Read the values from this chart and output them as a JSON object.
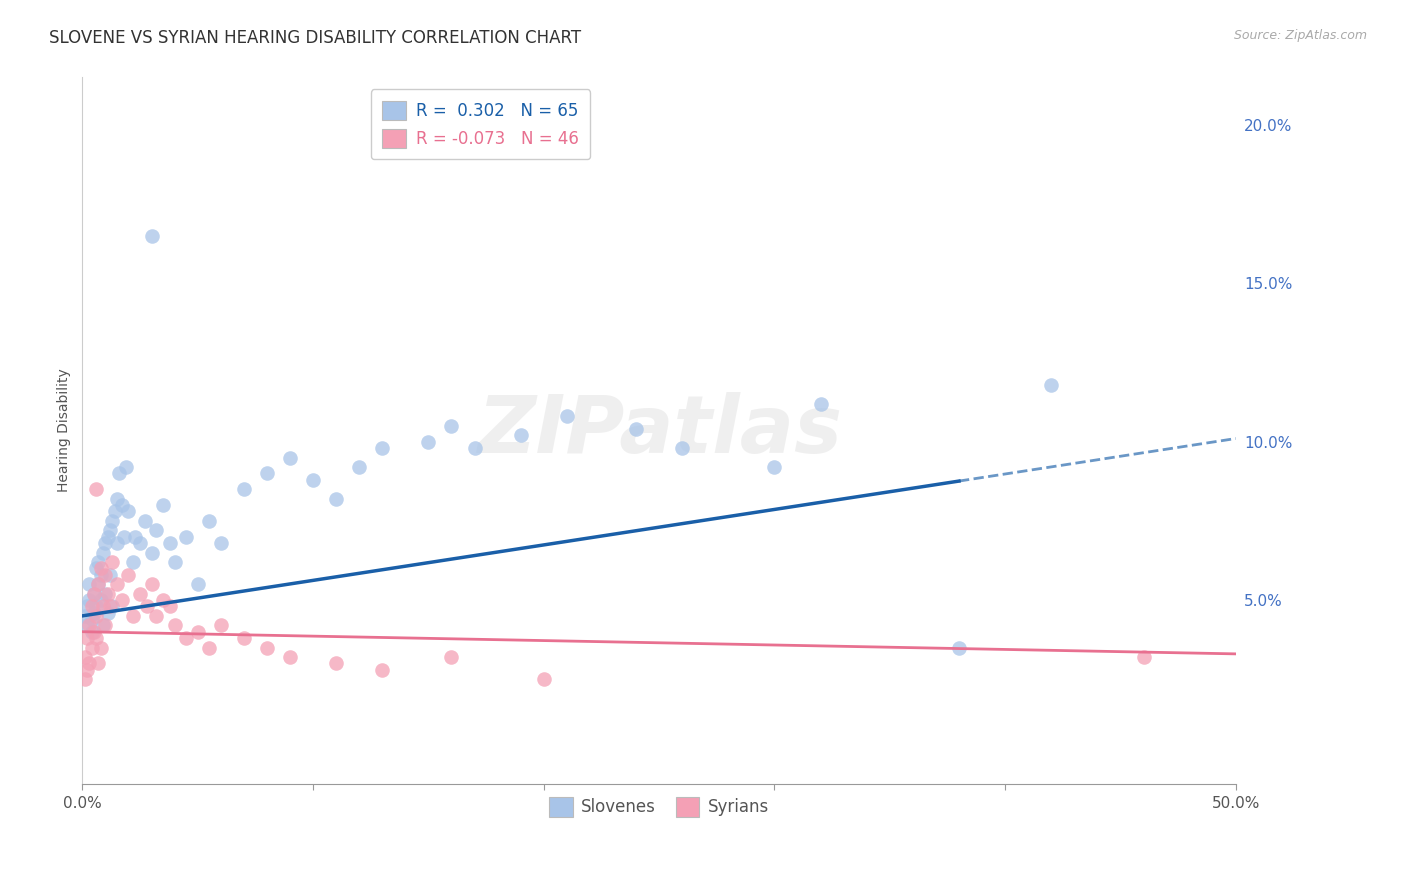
{
  "title": "SLOVENE VS SYRIAN HEARING DISABILITY CORRELATION CHART",
  "source": "Source: ZipAtlas.com",
  "ylabel": "Hearing Disability",
  "xlim": [
    0.0,
    0.5
  ],
  "ylim": [
    -0.008,
    0.215
  ],
  "xticks": [
    0.0,
    0.1,
    0.2,
    0.3,
    0.4,
    0.5
  ],
  "xtick_labels": [
    "0.0%",
    "",
    "",
    "",
    "",
    "50.0%"
  ],
  "yticks_right": [
    0.0,
    0.05,
    0.1,
    0.15,
    0.2
  ],
  "ytick_labels_right": [
    "",
    "5.0%",
    "10.0%",
    "15.0%",
    "20.0%"
  ],
  "grid_color": "#cccccc",
  "background_color": "#ffffff",
  "slovene_color": "#a8c4e8",
  "syrian_color": "#f4a0b5",
  "slovene_line_color": "#1a5fa8",
  "syrian_line_color": "#e87090",
  "legend_slovene_label": "R =  0.302   N = 65",
  "legend_syrian_label": "R = -0.073   N = 46",
  "legend_slovene_display": "Slovenes",
  "legend_syrian_display": "Syrians",
  "watermark": "ZIPatlas",
  "title_fontsize": 12,
  "axis_label_fontsize": 10,
  "tick_fontsize": 11,
  "right_tick_color": "#4472c4",
  "slovene_intercept": 0.045,
  "slovene_slope": 0.112,
  "syrian_intercept": 0.04,
  "syrian_slope": -0.014,
  "slovene_line_solid_end": 0.38,
  "slovene_x": [
    0.001,
    0.002,
    0.002,
    0.003,
    0.003,
    0.004,
    0.004,
    0.005,
    0.005,
    0.006,
    0.006,
    0.007,
    0.007,
    0.008,
    0.008,
    0.009,
    0.009,
    0.01,
    0.01,
    0.011,
    0.011,
    0.012,
    0.012,
    0.013,
    0.013,
    0.014,
    0.015,
    0.015,
    0.016,
    0.017,
    0.018,
    0.019,
    0.02,
    0.022,
    0.023,
    0.025,
    0.027,
    0.03,
    0.032,
    0.035,
    0.038,
    0.04,
    0.045,
    0.05,
    0.055,
    0.06,
    0.07,
    0.08,
    0.09,
    0.1,
    0.11,
    0.12,
    0.13,
    0.15,
    0.16,
    0.17,
    0.19,
    0.21,
    0.24,
    0.26,
    0.3,
    0.32,
    0.38,
    0.42,
    0.03
  ],
  "slovene_y": [
    0.045,
    0.048,
    0.042,
    0.05,
    0.055,
    0.044,
    0.04,
    0.052,
    0.046,
    0.06,
    0.048,
    0.055,
    0.062,
    0.05,
    0.058,
    0.065,
    0.042,
    0.068,
    0.052,
    0.07,
    0.046,
    0.072,
    0.058,
    0.075,
    0.048,
    0.078,
    0.082,
    0.068,
    0.09,
    0.08,
    0.07,
    0.092,
    0.078,
    0.062,
    0.07,
    0.068,
    0.075,
    0.065,
    0.072,
    0.08,
    0.068,
    0.062,
    0.07,
    0.055,
    0.075,
    0.068,
    0.085,
    0.09,
    0.095,
    0.088,
    0.082,
    0.092,
    0.098,
    0.1,
    0.105,
    0.098,
    0.102,
    0.108,
    0.104,
    0.098,
    0.092,
    0.112,
    0.035,
    0.118,
    0.165
  ],
  "syrian_x": [
    0.001,
    0.001,
    0.002,
    0.002,
    0.003,
    0.003,
    0.004,
    0.004,
    0.005,
    0.005,
    0.006,
    0.006,
    0.007,
    0.007,
    0.008,
    0.008,
    0.009,
    0.01,
    0.01,
    0.011,
    0.012,
    0.013,
    0.015,
    0.017,
    0.02,
    0.022,
    0.025,
    0.028,
    0.03,
    0.032,
    0.035,
    0.038,
    0.04,
    0.045,
    0.05,
    0.055,
    0.06,
    0.07,
    0.08,
    0.09,
    0.11,
    0.13,
    0.16,
    0.2,
    0.46,
    0.006
  ],
  "syrian_y": [
    0.032,
    0.025,
    0.038,
    0.028,
    0.042,
    0.03,
    0.048,
    0.035,
    0.052,
    0.04,
    0.038,
    0.045,
    0.055,
    0.03,
    0.06,
    0.035,
    0.048,
    0.058,
    0.042,
    0.052,
    0.048,
    0.062,
    0.055,
    0.05,
    0.058,
    0.045,
    0.052,
    0.048,
    0.055,
    0.045,
    0.05,
    0.048,
    0.042,
    0.038,
    0.04,
    0.035,
    0.042,
    0.038,
    0.035,
    0.032,
    0.03,
    0.028,
    0.032,
    0.025,
    0.032,
    0.085
  ]
}
